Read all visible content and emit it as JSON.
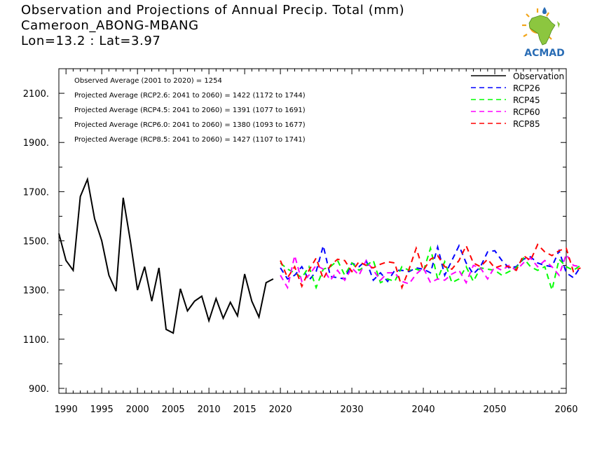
{
  "title": {
    "line1": "Observation and Projections of Annual Precip. Total (mm)",
    "line2": "Cameroon_ABONG-MBANG",
    "line3": "Lon=13.2 : Lat=3.97"
  },
  "logo": {
    "text": "ACMAD",
    "icon": "africa-map-sun-icon",
    "colors": {
      "brand": "#2a6db5",
      "africa": "#8cc63f",
      "sun": "#f2a51a"
    }
  },
  "chart_data": {
    "type": "line",
    "xlim": [
      1989,
      2060
    ],
    "ylim": [
      880,
      2200
    ],
    "grid": false,
    "legend_placement": "top-right",
    "x_ticks": [
      {
        "value": 1990,
        "label": "1990"
      },
      {
        "value": 1995,
        "label": "1995"
      },
      {
        "value": 2000,
        "label": "2000"
      },
      {
        "value": 2005,
        "label": "2005"
      },
      {
        "value": 2010,
        "label": "2010"
      },
      {
        "value": 2015,
        "label": "2015"
      },
      {
        "value": 2020,
        "label": "2020"
      },
      {
        "value": 2030,
        "label": "2030"
      },
      {
        "value": 2040,
        "label": "2040"
      },
      {
        "value": 2050,
        "label": "2050"
      },
      {
        "value": 2060,
        "label": "2060"
      }
    ],
    "y_ticks": [
      {
        "value": 900,
        "label": "900."
      },
      {
        "value": 1100,
        "label": "1100."
      },
      {
        "value": 1300,
        "label": "1300."
      },
      {
        "value": 1500,
        "label": "1500."
      },
      {
        "value": 1700,
        "label": "1700."
      },
      {
        "value": 1900,
        "label": "1900."
      },
      {
        "value": 2100,
        "label": "2100."
      }
    ],
    "annotations": [
      "Observed Average (2001 to 2020) = 1254",
      "Projected Average (RCP2.6: 2041 to 2060) = 1422 (1172 to 1744)",
      "Projected Average (RCP4.5: 2041 to 2060) = 1391 (1077 to 1691)",
      "Projected Average (RCP6.0: 2041 to 2060) = 1380 (1093 to 1677)",
      "Projected Average (RCP8.5: 2041 to 2060) = 1427 (1107 to 1741)"
    ],
    "observation": {
      "name": "Observation",
      "color": "#000000",
      "x": [
        1989,
        1990,
        1991,
        1992,
        1993,
        1994,
        1995,
        1996,
        1997,
        1998,
        1999,
        2000,
        2001,
        2002,
        2003,
        2004,
        2005,
        2006,
        2007,
        2008,
        2009,
        2010,
        2011,
        2012,
        2013,
        2014,
        2015,
        2016,
        2017,
        2018,
        2019
      ],
      "y": [
        1530,
        1420,
        1380,
        1680,
        1750,
        1590,
        1500,
        1360,
        1295,
        1675,
        1500,
        1300,
        1395,
        1255,
        1390,
        1140,
        1125,
        1305,
        1215,
        1255,
        1275,
        1175,
        1265,
        1185,
        1250,
        1195,
        1365,
        1255,
        1190,
        1330,
        1345
      ]
    },
    "series": [
      {
        "name": "RCP26",
        "color": "#0000ff",
        "x_start": 2020,
        "values": [
          1390,
          1345,
          1360,
          1395,
          1340,
          1375,
          1480,
          1355,
          1350,
          1345,
          1410,
          1395,
          1420,
          1340,
          1370,
          1335,
          1380,
          1380,
          1375,
          1390,
          1385,
          1370,
          1475,
          1360,
          1420,
          1480,
          1410,
          1365,
          1395,
          1455,
          1460,
          1420,
          1390,
          1395,
          1425,
          1435,
          1410,
          1400,
          1395,
          1460,
          1370,
          1350,
          1395
        ]
      },
      {
        "name": "RCP45",
        "color": "#00ff00",
        "x_start": 2020,
        "values": [
          1410,
          1385,
          1370,
          1350,
          1395,
          1310,
          1385,
          1395,
          1420,
          1360,
          1410,
          1380,
          1400,
          1420,
          1330,
          1345,
          1335,
          1395,
          1380,
          1385,
          1375,
          1470,
          1345,
          1415,
          1330,
          1345,
          1395,
          1335,
          1390,
          1385,
          1380,
          1360,
          1375,
          1390,
          1430,
          1395,
          1380,
          1395,
          1300,
          1425,
          1395,
          1380,
          1400
        ]
      },
      {
        "name": "RCP60",
        "color": "#ff00ff",
        "x_start": 2020,
        "values": [
          1360,
          1310,
          1440,
          1335,
          1360,
          1400,
          1385,
          1340,
          1380,
          1340,
          1390,
          1360,
          1420,
          1380,
          1340,
          1370,
          1370,
          1335,
          1325,
          1365,
          1390,
          1330,
          1345,
          1340,
          1365,
          1380,
          1330,
          1400,
          1390,
          1345,
          1395,
          1380,
          1400,
          1380,
          1410,
          1430,
          1395,
          1420,
          1395,
          1360,
          1445,
          1400,
          1395
        ]
      },
      {
        "name": "RCP85",
        "color": "#ff0000",
        "x_start": 2020,
        "values": [
          1420,
          1350,
          1395,
          1315,
          1380,
          1430,
          1345,
          1400,
          1425,
          1420,
          1375,
          1415,
          1400,
          1390,
          1405,
          1415,
          1410,
          1310,
          1385,
          1470,
          1380,
          1425,
          1440,
          1395,
          1385,
          1420,
          1480,
          1410,
          1395,
          1425,
          1390,
          1400,
          1395,
          1380,
          1440,
          1420,
          1485,
          1455,
          1440,
          1460,
          1470,
          1375,
          1390
        ]
      }
    ]
  }
}
